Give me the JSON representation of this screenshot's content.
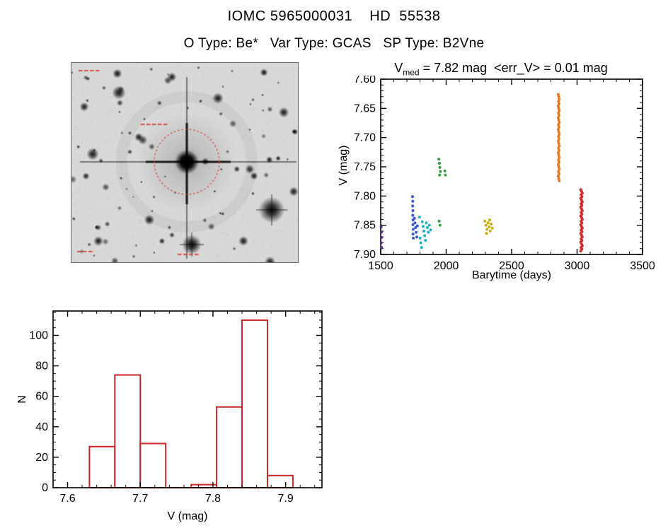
{
  "header": {
    "title": "IOMC 5965000031    HD  55538",
    "subtitle": "O Type: Be*   Var Type: GCAS   SP Type: B2Vne"
  },
  "colors": {
    "axis": "#000000",
    "histogram_bar": "#cd2626",
    "finder_overlay_red": "#e23b2e",
    "background": "#ffffff"
  },
  "chart_data": [
    {
      "id": "lightcurve",
      "type": "scatter",
      "title": "V_med = 7.82 mag  <err_V> = 0.01 mag",
      "title_parts": {
        "base": "V",
        "sub": "med",
        "rest": " = 7.82 mag  <err_V> = 0.01 mag"
      },
      "xlabel": "Barytime (days)",
      "ylabel": "V (mag)",
      "xlim": [
        1500,
        3500
      ],
      "ylim": [
        7.9,
        7.6
      ],
      "y_axis_inverted": true,
      "xticks": [
        1500,
        2000,
        2500,
        3000,
        3500
      ],
      "xtick_labels": [
        "1500",
        "2000",
        "2500",
        "3000",
        "3500"
      ],
      "yticks": [
        7.6,
        7.65,
        7.7,
        7.75,
        7.8,
        7.85,
        7.9
      ],
      "ytick_labels": [
        "7.60",
        "7.65",
        "7.70",
        "7.75",
        "7.80",
        "7.85",
        "7.90"
      ],
      "x_minor_step": 100,
      "y_minor_step": 0.01,
      "grid": false,
      "legend": "none",
      "series": [
        {
          "name": "epoch-1-purple",
          "color": "#5a3090",
          "points": [
            [
              1503,
              7.853
            ],
            [
              1505,
              7.862
            ],
            [
              1507,
              7.871
            ],
            [
              1504,
              7.88
            ],
            [
              1506,
              7.888
            ]
          ]
        },
        {
          "name": "epoch-2-blue",
          "color": "#3b55d4",
          "points": [
            [
              1743,
              7.801
            ],
            [
              1745,
              7.809
            ],
            [
              1744,
              7.817
            ],
            [
              1746,
              7.825
            ],
            [
              1745,
              7.833
            ],
            [
              1747,
              7.841
            ],
            [
              1746,
              7.849
            ],
            [
              1748,
              7.857
            ],
            [
              1747,
              7.865
            ],
            [
              1749,
              7.872
            ],
            [
              1758,
              7.838
            ],
            [
              1762,
              7.846
            ],
            [
              1766,
              7.854
            ],
            [
              1771,
              7.862
            ],
            [
              1776,
              7.87
            ],
            [
              1780,
              7.851
            ]
          ]
        },
        {
          "name": "epoch-3-cyan",
          "color": "#19b3c4",
          "points": [
            [
              1796,
              7.836
            ],
            [
              1801,
              7.872
            ],
            [
              1806,
              7.88
            ],
            [
              1812,
              7.888
            ],
            [
              1818,
              7.844
            ],
            [
              1824,
              7.852
            ],
            [
              1830,
              7.86
            ],
            [
              1836,
              7.868
            ],
            [
              1842,
              7.876
            ],
            [
              1849,
              7.846
            ],
            [
              1856,
              7.854
            ],
            [
              1864,
              7.862
            ],
            [
              1872,
              7.85
            ],
            [
              1881,
              7.858
            ]
          ]
        },
        {
          "name": "epoch-4-green",
          "color": "#2f9e41",
          "points": [
            [
              1944,
              7.737
            ],
            [
              1948,
              7.744
            ],
            [
              1952,
              7.751
            ],
            [
              1956,
              7.758
            ],
            [
              1950,
              7.764
            ],
            [
              1946,
              7.843
            ],
            [
              1953,
              7.85
            ],
            [
              1990,
              7.757
            ],
            [
              1994,
              7.764
            ]
          ]
        },
        {
          "name": "epoch-5-yellow",
          "color": "#c9ac10",
          "points": [
            [
              2296,
              7.843
            ],
            [
              2304,
              7.85
            ],
            [
              2312,
              7.857
            ],
            [
              2320,
              7.846
            ],
            [
              2328,
              7.853
            ],
            [
              2336,
              7.86
            ],
            [
              2344,
              7.848
            ],
            [
              2352,
              7.855
            ],
            [
              2308,
              7.864
            ],
            [
              2332,
              7.841
            ]
          ]
        },
        {
          "name": "epoch-6-orange",
          "color": "#e87a1e",
          "points": [
            [
              2856,
              7.626
            ],
            [
              2860,
              7.63
            ],
            [
              2864,
              7.634
            ],
            [
              2858,
              7.638
            ],
            [
              2862,
              7.642
            ],
            [
              2856,
              7.646
            ],
            [
              2860,
              7.65
            ],
            [
              2864,
              7.654
            ],
            [
              2858,
              7.658
            ],
            [
              2862,
              7.662
            ],
            [
              2856,
              7.666
            ],
            [
              2860,
              7.67
            ],
            [
              2864,
              7.674
            ],
            [
              2858,
              7.678
            ],
            [
              2862,
              7.682
            ],
            [
              2856,
              7.686
            ],
            [
              2860,
              7.69
            ],
            [
              2864,
              7.694
            ],
            [
              2858,
              7.698
            ],
            [
              2862,
              7.702
            ],
            [
              2856,
              7.706
            ],
            [
              2860,
              7.71
            ],
            [
              2864,
              7.714
            ],
            [
              2858,
              7.718
            ],
            [
              2862,
              7.722
            ],
            [
              2856,
              7.726
            ],
            [
              2860,
              7.73
            ],
            [
              2864,
              7.734
            ],
            [
              2858,
              7.738
            ],
            [
              2862,
              7.742
            ],
            [
              2856,
              7.746
            ],
            [
              2860,
              7.75
            ],
            [
              2864,
              7.754
            ],
            [
              2858,
              7.758
            ],
            [
              2862,
              7.762
            ],
            [
              2856,
              7.766
            ],
            [
              2860,
              7.77
            ],
            [
              2864,
              7.774
            ]
          ]
        },
        {
          "name": "epoch-7-red",
          "color": "#d42a28",
          "points": [
            [
              3028,
              7.789
            ],
            [
              3034,
              7.792
            ],
            [
              3040,
              7.795
            ],
            [
              3031,
              7.798
            ],
            [
              3037,
              7.801
            ],
            [
              3028,
              7.804
            ],
            [
              3034,
              7.807
            ],
            [
              3040,
              7.81
            ],
            [
              3031,
              7.813
            ],
            [
              3037,
              7.816
            ],
            [
              3028,
              7.819
            ],
            [
              3034,
              7.822
            ],
            [
              3040,
              7.825
            ],
            [
              3031,
              7.828
            ],
            [
              3037,
              7.831
            ],
            [
              3028,
              7.834
            ],
            [
              3034,
              7.837
            ],
            [
              3040,
              7.84
            ],
            [
              3031,
              7.843
            ],
            [
              3037,
              7.846
            ],
            [
              3028,
              7.849
            ],
            [
              3034,
              7.852
            ],
            [
              3040,
              7.855
            ],
            [
              3031,
              7.858
            ],
            [
              3037,
              7.861
            ],
            [
              3028,
              7.864
            ],
            [
              3034,
              7.867
            ],
            [
              3040,
              7.87
            ],
            [
              3031,
              7.873
            ],
            [
              3037,
              7.876
            ],
            [
              3028,
              7.879
            ],
            [
              3034,
              7.882
            ],
            [
              3040,
              7.885
            ],
            [
              3031,
              7.888
            ],
            [
              3037,
              7.891
            ],
            [
              3028,
              7.894
            ]
          ]
        }
      ]
    },
    {
      "id": "v-histogram",
      "type": "histogram",
      "title": "",
      "xlabel": "V (mag)",
      "ylabel": "N",
      "xlim": [
        7.58,
        7.95
      ],
      "ylim": [
        0,
        116
      ],
      "xticks": [
        7.6,
        7.7,
        7.8,
        7.9
      ],
      "xtick_labels": [
        "7.6",
        "7.7",
        "7.8",
        "7.9"
      ],
      "yticks": [
        0,
        20,
        40,
        60,
        80,
        100
      ],
      "ytick_labels": [
        "0",
        "20",
        "40",
        "60",
        "80",
        "100"
      ],
      "x_minor_step": 0.02,
      "y_minor_step": 5,
      "bar_color": "#cd2626",
      "bin_edges": [
        7.63,
        7.665,
        7.7,
        7.735,
        7.77,
        7.805,
        7.84,
        7.875,
        7.91
      ],
      "counts": [
        27,
        74,
        29,
        0,
        2,
        53,
        110,
        8
      ],
      "grid": false
    }
  ]
}
